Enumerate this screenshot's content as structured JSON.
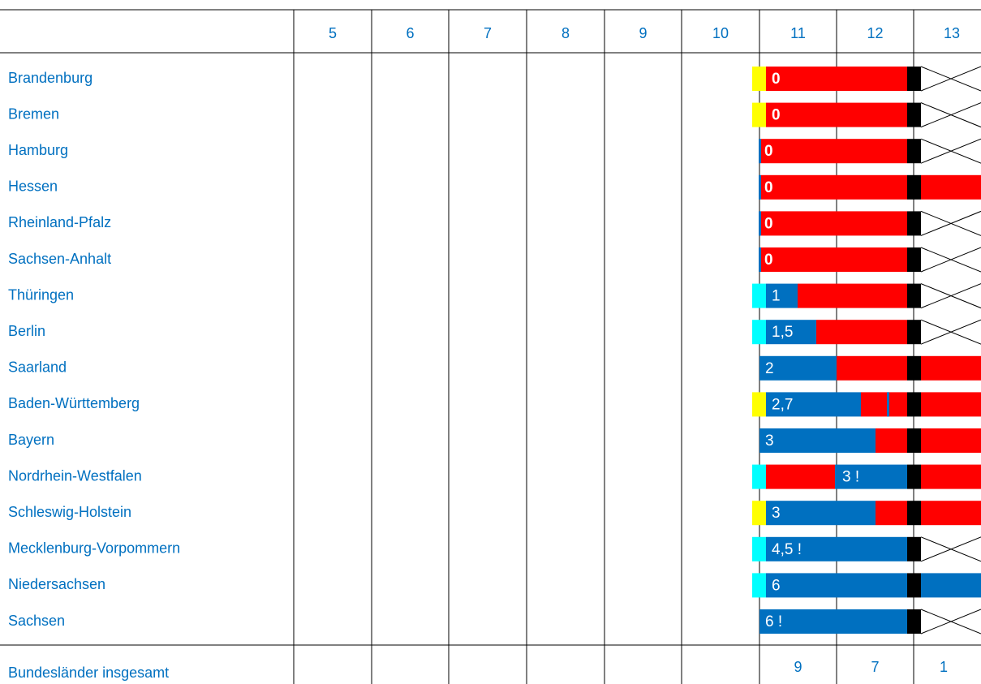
{
  "header": {
    "columns": [
      5,
      6,
      7,
      8,
      9,
      10,
      11,
      12,
      13
    ]
  },
  "rows": [
    {
      "name": "Brandenburg",
      "label": "0"
    },
    {
      "name": "Bremen",
      "label": "0"
    },
    {
      "name": "Hamburg",
      "label": "0"
    },
    {
      "name": "Hessen",
      "label": "0"
    },
    {
      "name": "Rheinland-Pfalz",
      "label": "0"
    },
    {
      "name": "Sachsen-Anhalt",
      "label": "0"
    },
    {
      "name": "Thüringen",
      "label": "1"
    },
    {
      "name": "Berlin",
      "label": "1,5"
    },
    {
      "name": "Saarland",
      "label": "2"
    },
    {
      "name": "Baden-Württemberg",
      "label": "2,7"
    },
    {
      "name": "Bayern",
      "label": "3"
    },
    {
      "name": "Nordrhein-Westfalen",
      "label": "3 !"
    },
    {
      "name": "Schleswig-Holstein",
      "label": "3"
    },
    {
      "name": "Mecklenburg-Vorpommern",
      "label": "4,5 !"
    },
    {
      "name": "Niedersachsen",
      "label": "6"
    },
    {
      "name": "Sachsen",
      "label": "6 !"
    }
  ],
  "totals": {
    "label": "Bundesländer insgesamt",
    "values": [
      9,
      7,
      1
    ]
  }
}
